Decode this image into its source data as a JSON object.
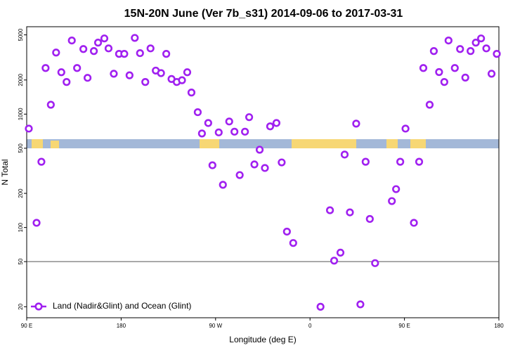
{
  "chart_data": {
    "type": "scatter",
    "title": "15N-20N June (Ver 7b_s31)   2014-09-06 to 2017-03-31",
    "x_label": "Longitude (deg E)",
    "y_label": "N Total",
    "log_y": true,
    "legend": "lower left",
    "xlim": [
      90,
      540
    ],
    "xticks": [
      {
        "value": 90,
        "label": "90 E"
      },
      {
        "value": 180,
        "label": "180"
      },
      {
        "value": 270,
        "label": "90 W"
      },
      {
        "value": 360,
        "label": "0"
      },
      {
        "value": 450,
        "label": "90 E"
      },
      {
        "value": 540,
        "label": "180"
      }
    ],
    "ylim": [
      16,
      5900
    ],
    "yticks": [
      20,
      50,
      100,
      200,
      500,
      1000,
      2000,
      5000
    ],
    "hlines": [
      50
    ],
    "series": [
      {
        "name": "Land (Nadir&Glint) and Ocean (Glint)",
        "color": "#a020f0",
        "x": [
          92,
          99.4,
          104,
          108,
          113,
          118,
          123,
          128,
          133,
          138,
          144,
          148,
          154,
          158,
          164,
          168,
          173,
          178,
          183,
          188,
          193,
          198,
          203,
          208,
          213,
          218,
          223,
          228,
          233,
          238,
          243,
          247,
          253,
          257,
          263,
          267,
          273,
          277,
          283,
          288,
          293,
          298,
          302,
          307,
          312,
          317,
          322,
          328,
          333,
          338,
          344,
          370,
          379,
          383,
          389,
          393,
          398,
          404,
          408,
          413,
          417,
          422,
          438,
          442,
          446,
          451,
          459,
          464,
          468,
          474,
          478,
          483,
          488,
          492,
          498,
          503,
          508,
          513,
          518,
          523,
          528,
          533,
          538
        ],
        "values": [
          745,
          110,
          380,
          2550,
          1210,
          3490,
          2340,
          1920,
          4460,
          2550,
          3750,
          2090,
          3600,
          4270,
          4650,
          3800,
          2270,
          3400,
          3400,
          2200,
          4700,
          3450,
          1920,
          3800,
          2420,
          2300,
          3400,
          2040,
          1920,
          1990,
          2340,
          1550,
          1040,
          675,
          835,
          354,
          690,
          238,
          861,
          700,
          290,
          700,
          940,
          360,
          485,
          335,
          780,
          835,
          375,
          92,
          73,
          20,
          142,
          51,
          60,
          440,
          136,
          824,
          21,
          380,
          119,
          48.5,
          171,
          218,
          380,
          745,
          110,
          380,
          2550,
          1210,
          3600,
          2350,
          1920,
          4460,
          2550,
          3750,
          2100,
          3600,
          4270,
          4650,
          3800,
          2270,
          3400
        ]
      }
    ]
  }
}
